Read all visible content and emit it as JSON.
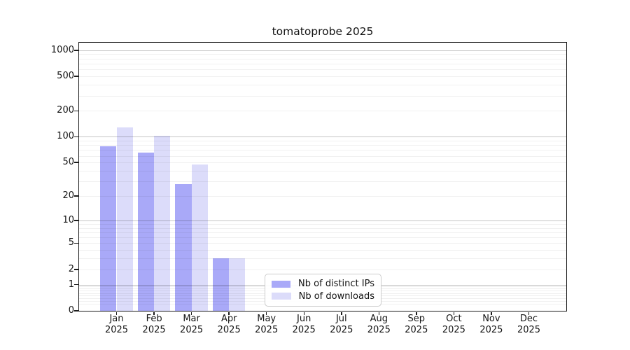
{
  "chart_data": {
    "type": "bar",
    "title": "tomatoprobe 2025",
    "scale": "log1p",
    "categories": [
      {
        "month": "Jan",
        "year": "2025"
      },
      {
        "month": "Feb",
        "year": "2025"
      },
      {
        "month": "Mar",
        "year": "2025"
      },
      {
        "month": "Apr",
        "year": "2025"
      },
      {
        "month": "May",
        "year": "2025"
      },
      {
        "month": "Jun",
        "year": "2025"
      },
      {
        "month": "Jul",
        "year": "2025"
      },
      {
        "month": "Aug",
        "year": "2025"
      },
      {
        "month": "Sep",
        "year": "2025"
      },
      {
        "month": "Oct",
        "year": "2025"
      },
      {
        "month": "Nov",
        "year": "2025"
      },
      {
        "month": "Dec",
        "year": "2025"
      }
    ],
    "series": [
      {
        "name": "Nb of distinct IPs",
        "color": "#a9a9f8",
        "values": [
          77,
          65,
          28,
          3,
          0,
          0,
          0,
          0,
          0,
          0,
          0,
          0
        ]
      },
      {
        "name": "Nb of downloads",
        "color": "#dcdcfa",
        "values": [
          128,
          103,
          47,
          3,
          0,
          0,
          0,
          0,
          0,
          0,
          0,
          0
        ]
      }
    ],
    "y_ticks": [
      1000,
      500,
      200,
      100,
      50,
      20,
      10,
      5,
      2,
      1,
      0
    ],
    "ylim": [
      0,
      1220
    ],
    "grid": {
      "major_at": [
        1,
        10,
        100,
        1000
      ],
      "minor": "2-9 per decade",
      "major_color": "#c5c5c5",
      "minor_color": "#efefef"
    },
    "legend_position": "inside lower middle",
    "axis_color": "#1b1b1b"
  }
}
